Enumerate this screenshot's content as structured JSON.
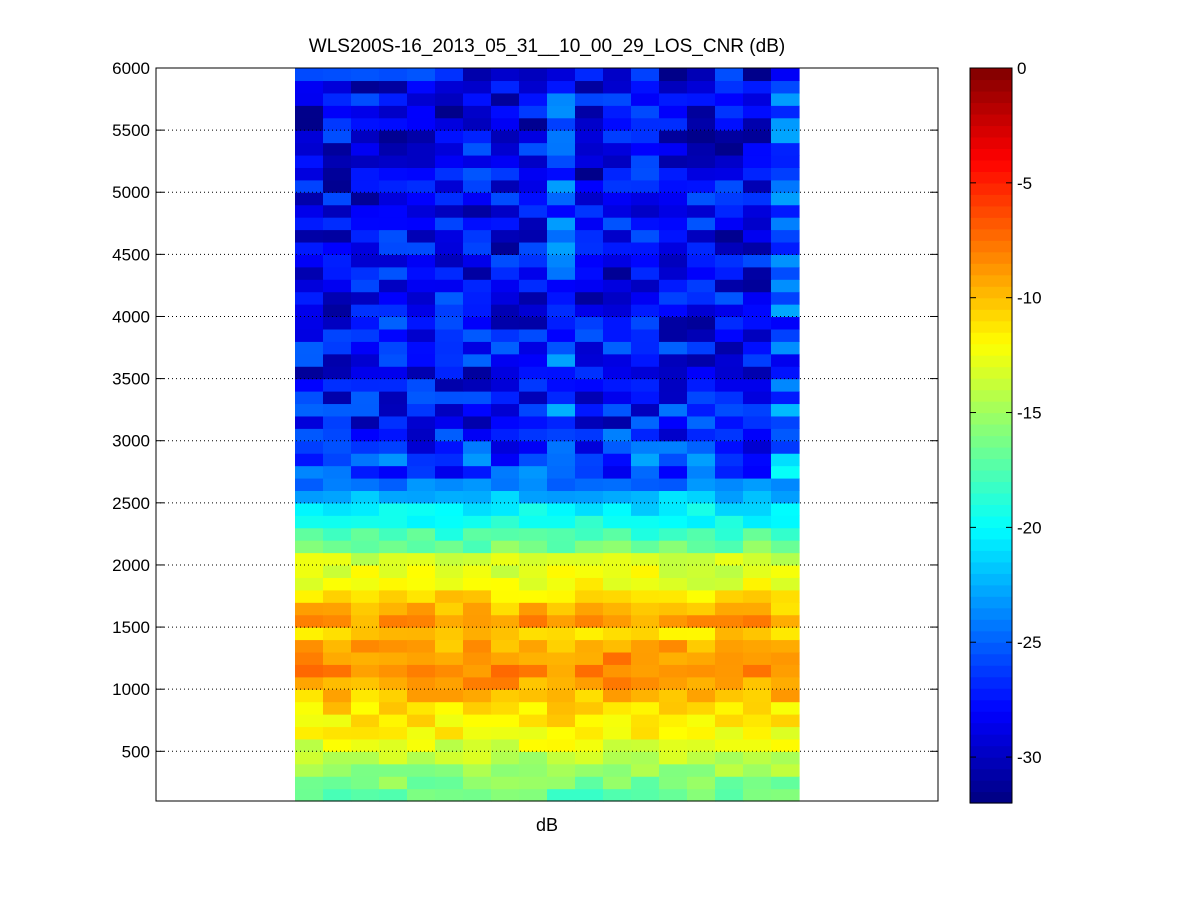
{
  "chart_data": {
    "type": "heatmap",
    "title": "WLS200S-16_2013_05_31__10_00_29_LOS_CNR (dB)",
    "xlabel": "dB",
    "ylabel": "",
    "ylim": [
      100,
      6000
    ],
    "yticks": [
      500,
      1000,
      1500,
      2000,
      2500,
      3000,
      3500,
      4000,
      4500,
      5000,
      5500,
      6000
    ],
    "grid": "y-dotted",
    "colormap": "jet",
    "colorbar": {
      "clim": [
        -32,
        0
      ],
      "ticks": [
        0,
        -5,
        -10,
        -15,
        -20,
        -25,
        -30
      ],
      "position": "right"
    },
    "n_columns": 18,
    "row_height": 100,
    "range_gates": [
      150,
      250,
      350,
      450,
      550,
      650,
      750,
      850,
      950,
      1050,
      1150,
      1250,
      1350,
      1450,
      1550,
      1650,
      1750,
      1850,
      1950,
      2050,
      2150,
      2250,
      2350,
      2450,
      2550,
      2650,
      2750,
      2850,
      2950,
      3050,
      3150,
      3250,
      3350,
      3450,
      3550,
      3650,
      3750,
      3850,
      3950,
      4050,
      4150,
      4250,
      4350,
      4450,
      4550,
      4650,
      4750,
      4850,
      4950,
      5050,
      5150,
      5250,
      5350,
      5450,
      5550,
      5650,
      5750,
      5850,
      5950
    ],
    "profile_cnr": [
      -17,
      -16,
      -15,
      -14,
      -13,
      -12,
      -11.5,
      -11,
      -10,
      -9,
      -8.5,
      -8.5,
      -9.5,
      -10.5,
      -9,
      -10,
      -11,
      -12.5,
      -13,
      -13.5,
      -16.5,
      -18,
      -19.5,
      -20.5,
      -22,
      -24,
      -25.5,
      -25.5,
      -26.5,
      -27,
      -27.5,
      -27.5,
      -28,
      -28,
      -28,
      -28,
      -28,
      -28,
      -28,
      -28,
      -28,
      -28,
      -28.5,
      -28.5,
      -28.5,
      -28.5,
      -28.5,
      -28.5,
      -28.5,
      -28.5,
      -28.5,
      -28.5,
      -28.5,
      -28.5,
      -28.5,
      -28.5,
      -28.5,
      -28.5,
      -28.5
    ]
  }
}
